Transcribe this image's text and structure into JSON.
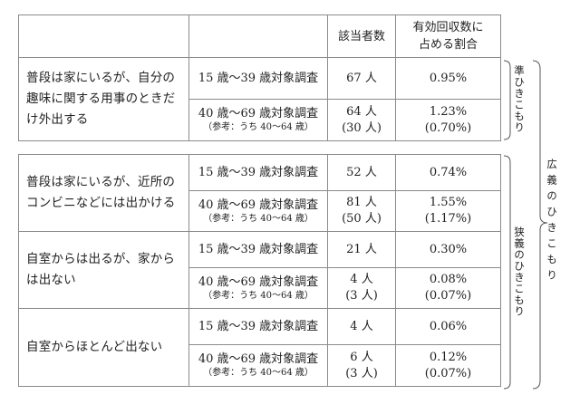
{
  "header": {
    "count": "該当者数",
    "ratio_line1": "有効回収数に",
    "ratio_line2": "占める割合"
  },
  "rows": [
    {
      "description": "普段は家にいるが、自分の趣味に関する用事のときだけ外出する",
      "young": {
        "label": "15 歳～39 歳対象調査",
        "count": "67 人",
        "ratio": "0.95%"
      },
      "old": {
        "label": "40 歳～69 歳対象調査",
        "ref": "（参考：うち 40～64 歳）",
        "count": "64 人",
        "count_ref": "(30 人)",
        "ratio": "1.23%",
        "ratio_ref": "(0.70%)"
      }
    },
    {
      "description": "普段は家にいるが、近所のコンビニなどには出かける",
      "young": {
        "label": "15 歳～39 歳対象調査",
        "count": "52 人",
        "ratio": "0.74%"
      },
      "old": {
        "label": "40 歳～69 歳対象調査",
        "ref": "（参考：うち 40～64 歳）",
        "count": "81 人",
        "count_ref": "(50 人)",
        "ratio": "1.55%",
        "ratio_ref": "(1.17%)"
      }
    },
    {
      "description": "自室からは出るが、家からは出ない",
      "young": {
        "label": "15 歳～39 歳対象調査",
        "count": "21 人",
        "ratio": "0.30%"
      },
      "old": {
        "label": "40 歳～69 歳対象調査",
        "ref": "（参考：うち 40～64 歳）",
        "count": "4 人",
        "count_ref": "(3 人)",
        "ratio": "0.08%",
        "ratio_ref": "(0.07%)"
      }
    },
    {
      "description": "自室からほとんど出ない",
      "young": {
        "label": "15 歳～39 歳対象調査",
        "count": "4 人",
        "ratio": "0.06%"
      },
      "old": {
        "label": "40 歳～69 歳対象調査",
        "ref": "（参考：うち 40～64 歳）",
        "count": "6 人",
        "count_ref": "(3 人)",
        "ratio": "0.12%",
        "ratio_ref": "(0.07%)"
      }
    }
  ],
  "labels": {
    "quasi": "準ひきこもり",
    "narrow": "狭義のひきこもり",
    "broad": "広義のひきこもり"
  }
}
